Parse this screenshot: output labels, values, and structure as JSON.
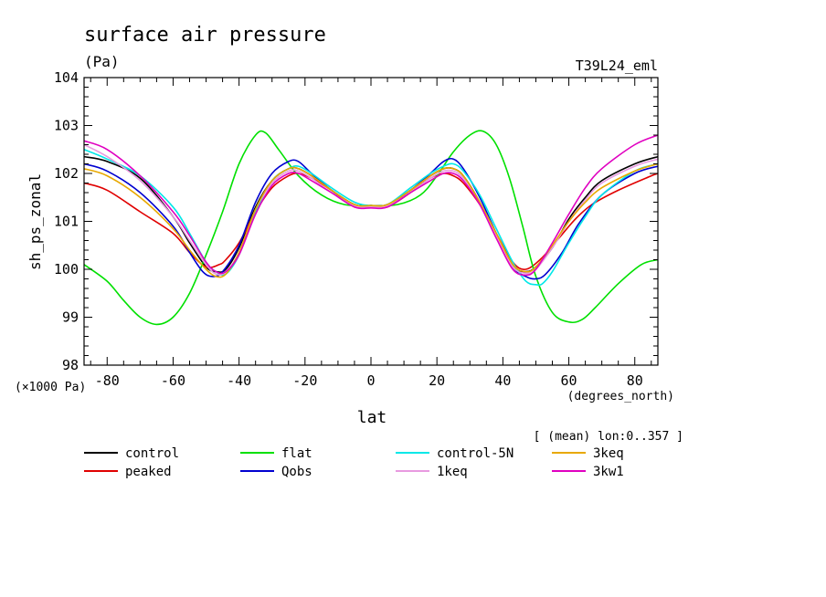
{
  "chart_data": {
    "type": "line",
    "title": "surface air pressure",
    "subtitle": "(Pa)",
    "run_label": "T39L24_eml",
    "ylabel": "sh_ps_zonal",
    "xlabel": "lat",
    "x_units": "(degrees_north)",
    "y_units": "(×1000 Pa)",
    "annotation": "[ (mean) lon:0..357 ]",
    "xlim": [
      -87,
      87
    ],
    "ylim": [
      98,
      104
    ],
    "x_ticks": [
      -80,
      -60,
      -40,
      -20,
      0,
      20,
      40,
      60,
      80
    ],
    "x_tick_labels": [
      "-80",
      "-60",
      "-40",
      "-20",
      "0",
      "20",
      "40",
      "60",
      "80"
    ],
    "y_ticks": [
      98,
      99,
      100,
      101,
      102,
      103,
      104
    ],
    "y_tick_labels": [
      "98",
      "99",
      "100",
      "101",
      "102",
      "103",
      "104"
    ],
    "grid": false,
    "legend_position": "bottom",
    "series": [
      {
        "name": "control",
        "color": "#000000",
        "x": [
          -87,
          -80,
          -70,
          -60,
          -55,
          -50,
          -47,
          -44,
          -40,
          -35,
          -30,
          -25,
          -22,
          -18,
          -12,
          -5,
          0,
          5,
          12,
          18,
          22,
          25,
          28,
          33,
          38,
          43,
          47,
          50,
          55,
          60,
          65,
          70,
          80,
          87
        ],
        "y": [
          102.35,
          102.25,
          101.9,
          101.1,
          100.55,
          100.05,
          99.95,
          100.0,
          100.45,
          101.3,
          101.85,
          102.1,
          102.1,
          101.95,
          101.65,
          101.35,
          101.33,
          101.35,
          101.65,
          101.95,
          102.1,
          102.1,
          101.95,
          101.4,
          100.7,
          100.05,
          99.95,
          100.05,
          100.45,
          101.05,
          101.5,
          101.85,
          102.2,
          102.35
        ]
      },
      {
        "name": "peaked",
        "color": "#e00000",
        "x": [
          -87,
          -80,
          -70,
          -60,
          -55,
          -50,
          -46,
          -44,
          -40,
          -35,
          -30,
          -25,
          -22,
          -18,
          -12,
          -5,
          0,
          5,
          12,
          18,
          22,
          25,
          28,
          33,
          38,
          43,
          47,
          52,
          57,
          62,
          67,
          75,
          85,
          87
        ],
        "y": [
          101.8,
          101.65,
          101.2,
          100.75,
          100.35,
          100.05,
          100.1,
          100.2,
          100.55,
          101.2,
          101.7,
          101.95,
          102.0,
          101.9,
          101.65,
          101.3,
          101.3,
          101.3,
          101.6,
          101.9,
          102.0,
          101.95,
          101.8,
          101.35,
          100.75,
          100.15,
          100.0,
          100.25,
          100.65,
          101.05,
          101.35,
          101.65,
          101.95,
          102.0
        ]
      },
      {
        "name": "flat",
        "color": "#00e000",
        "x": [
          -87,
          -80,
          -75,
          -70,
          -65,
          -60,
          -55,
          -50,
          -45,
          -40,
          -35,
          -32,
          -28,
          -22,
          -15,
          -8,
          0,
          8,
          15,
          20,
          25,
          30,
          34,
          38,
          42,
          46,
          50,
          55,
          60,
          64,
          68,
          75,
          82,
          87
        ],
        "y": [
          100.1,
          99.75,
          99.35,
          99.0,
          98.85,
          99.0,
          99.5,
          100.3,
          101.2,
          102.2,
          102.8,
          102.85,
          102.5,
          101.95,
          101.55,
          101.35,
          101.33,
          101.35,
          101.55,
          101.95,
          102.45,
          102.8,
          102.88,
          102.6,
          101.9,
          100.9,
          99.85,
          99.1,
          98.9,
          98.95,
          99.2,
          99.7,
          100.1,
          100.2
        ]
      },
      {
        "name": "Qobs",
        "color": "#0000d0",
        "x": [
          -87,
          -80,
          -70,
          -60,
          -55,
          -51,
          -48,
          -45,
          -40,
          -35,
          -30,
          -25,
          -22,
          -18,
          -12,
          -5,
          0,
          5,
          12,
          18,
          22,
          25,
          28,
          33,
          38,
          43,
          47,
          50,
          53,
          58,
          63,
          70,
          80,
          87
        ],
        "y": [
          102.2,
          102.05,
          101.6,
          100.9,
          100.35,
          99.95,
          99.85,
          99.95,
          100.5,
          101.4,
          102.0,
          102.25,
          102.25,
          102.0,
          101.65,
          101.35,
          101.33,
          101.35,
          101.65,
          102.0,
          102.25,
          102.3,
          102.1,
          101.5,
          100.75,
          100.05,
          99.85,
          99.8,
          99.9,
          100.35,
          100.95,
          101.55,
          102.0,
          102.15
        ]
      },
      {
        "name": "control-5N",
        "color": "#00e8e8",
        "x": [
          -87,
          -80,
          -70,
          -60,
          -55,
          -50,
          -47,
          -44,
          -40,
          -35,
          -30,
          -25,
          -22,
          -18,
          -12,
          -5,
          0,
          5,
          12,
          18,
          22,
          25,
          28,
          33,
          38,
          43,
          47,
          50,
          52,
          55,
          60,
          65,
          70,
          80,
          87
        ],
        "y": [
          102.5,
          102.3,
          101.95,
          101.3,
          100.75,
          100.15,
          99.95,
          99.9,
          100.3,
          101.2,
          101.85,
          102.1,
          102.15,
          102.0,
          101.7,
          101.4,
          101.33,
          101.35,
          101.7,
          102.0,
          102.15,
          102.2,
          102.05,
          101.55,
          100.85,
          100.15,
          99.75,
          99.68,
          99.7,
          99.95,
          100.55,
          101.1,
          101.55,
          102.05,
          102.2
        ]
      },
      {
        "name": "1keq",
        "color": "#e89ae0",
        "x": [
          -87,
          -80,
          -70,
          -60,
          -55,
          -50,
          -47,
          -44,
          -40,
          -35,
          -30,
          -25,
          -22,
          -18,
          -12,
          -5,
          0,
          5,
          12,
          18,
          22,
          25,
          28,
          33,
          38,
          43,
          47,
          50,
          55,
          60,
          65,
          70,
          80,
          87
        ],
        "y": [
          102.6,
          102.35,
          101.85,
          101.1,
          100.6,
          100.1,
          99.9,
          99.95,
          100.35,
          101.25,
          101.8,
          102.05,
          102.05,
          101.9,
          101.6,
          101.33,
          101.3,
          101.33,
          101.6,
          101.9,
          102.05,
          102.05,
          101.9,
          101.4,
          100.7,
          100.05,
          99.92,
          100.0,
          100.45,
          101.0,
          101.45,
          101.8,
          102.15,
          102.3
        ]
      },
      {
        "name": "3keq",
        "color": "#e8a800",
        "x": [
          -87,
          -80,
          -70,
          -60,
          -55,
          -50,
          -47,
          -44,
          -40,
          -35,
          -30,
          -25,
          -22,
          -18,
          -12,
          -5,
          0,
          5,
          12,
          18,
          22,
          25,
          28,
          33,
          38,
          43,
          47,
          50,
          55,
          60,
          65,
          70,
          80,
          87
        ],
        "y": [
          102.1,
          101.95,
          101.5,
          100.85,
          100.4,
          100.0,
          99.85,
          99.9,
          100.35,
          101.25,
          101.85,
          102.1,
          102.1,
          101.95,
          101.65,
          101.35,
          101.33,
          101.35,
          101.65,
          101.95,
          102.1,
          102.1,
          101.95,
          101.4,
          100.75,
          100.1,
          99.95,
          100.05,
          100.5,
          101.0,
          101.4,
          101.7,
          102.05,
          102.2
        ]
      },
      {
        "name": "3kw1",
        "color": "#e000c0",
        "x": [
          -87,
          -80,
          -70,
          -60,
          -55,
          -50,
          -47,
          -44,
          -40,
          -35,
          -30,
          -25,
          -22,
          -18,
          -12,
          -5,
          0,
          5,
          12,
          18,
          22,
          25,
          28,
          33,
          38,
          43,
          47,
          50,
          55,
          60,
          65,
          70,
          80,
          87
        ],
        "y": [
          102.68,
          102.5,
          101.95,
          101.2,
          100.7,
          100.15,
          99.95,
          99.95,
          100.3,
          101.15,
          101.75,
          102.0,
          102.0,
          101.85,
          101.6,
          101.3,
          101.28,
          101.3,
          101.6,
          101.85,
          102.0,
          102.0,
          101.85,
          101.35,
          100.65,
          100.0,
          99.88,
          100.0,
          100.55,
          101.15,
          101.7,
          102.1,
          102.6,
          102.8
        ]
      }
    ]
  }
}
